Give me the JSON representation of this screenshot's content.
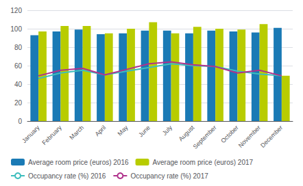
{
  "chart_data": {
    "type": "bar",
    "categories": [
      "January",
      "February",
      "March",
      "April",
      "May",
      "June",
      "July",
      "August",
      "September",
      "October",
      "November",
      "December"
    ],
    "series": [
      {
        "name": "Average room price (euros) 2016",
        "type": "bar",
        "color": "#1a7ab5",
        "values": [
          93,
          97,
          99,
          94,
          95,
          98,
          98,
          95,
          98,
          97,
          96,
          101
        ]
      },
      {
        "name": "Average room price (euros) 2017",
        "type": "bar",
        "color": "#b8cc00",
        "values": [
          97,
          103,
          103,
          95,
          100,
          107,
          95,
          102,
          100,
          99,
          105,
          49
        ]
      },
      {
        "name": "Occupancy rate (%) 2016",
        "type": "line",
        "color": "#3dbdbd",
        "values": [
          46,
          52,
          55,
          50,
          54,
          58,
          62,
          60,
          59,
          54,
          51,
          49
        ]
      },
      {
        "name": "Occupancy rate (%) 2017",
        "type": "line",
        "color": "#b0328c",
        "values": [
          49,
          55,
          57,
          50,
          56,
          62,
          64,
          61,
          59,
          52,
          55,
          49
        ]
      }
    ],
    "ylim": [
      0,
      120
    ],
    "yticks": [
      0,
      20,
      40,
      60,
      80,
      100,
      120
    ],
    "grid": true,
    "legend": "bottom"
  }
}
